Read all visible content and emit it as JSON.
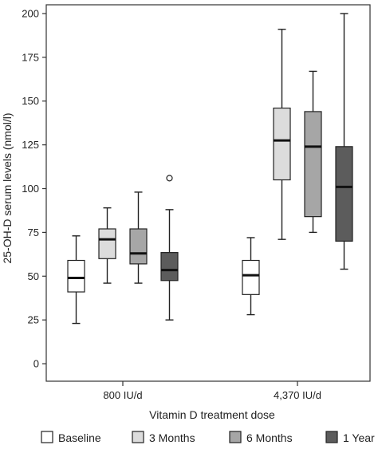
{
  "chart_data": {
    "type": "box",
    "title": "",
    "xlabel": "Vitamin D treatment dose",
    "ylabel": "25-OH-D serum levels (nmol/l)",
    "ylim": [
      -10,
      205
    ],
    "yticks": [
      0,
      25,
      50,
      75,
      100,
      125,
      150,
      175,
      200
    ],
    "categories": [
      "800 IU/d",
      "4,370 IU/d"
    ],
    "grid": false,
    "legend_position": "bottom",
    "series": [
      {
        "name": "Baseline",
        "color": "#ffffff",
        "boxes": [
          {
            "min": 23,
            "q1": 41,
            "median": 49,
            "q3": 59,
            "max": 73,
            "outliers": []
          },
          {
            "min": 28,
            "q1": 39.5,
            "median": 50.5,
            "q3": 59,
            "max": 72,
            "outliers": []
          }
        ]
      },
      {
        "name": "3 Months",
        "color": "#dcdcdc",
        "boxes": [
          {
            "min": 46,
            "q1": 60,
            "median": 71,
            "q3": 77,
            "max": 89,
            "outliers": []
          },
          {
            "min": 71,
            "q1": 105,
            "median": 127.5,
            "q3": 146,
            "max": 191,
            "outliers": []
          }
        ]
      },
      {
        "name": "6 Months",
        "color": "#a6a6a6",
        "boxes": [
          {
            "min": 46,
            "q1": 57,
            "median": 63,
            "q3": 77,
            "max": 98,
            "outliers": []
          },
          {
            "min": 75,
            "q1": 84,
            "median": 124,
            "q3": 144,
            "max": 167,
            "outliers": []
          }
        ]
      },
      {
        "name": "1 Year",
        "color": "#5c5c5c",
        "boxes": [
          {
            "min": 25,
            "q1": 47.5,
            "median": 53.5,
            "q3": 63.5,
            "max": 88,
            "outliers": [
              106
            ]
          },
          {
            "min": 54,
            "q1": 70,
            "median": 101,
            "q3": 124,
            "max": 200,
            "outliers": []
          }
        ]
      }
    ]
  }
}
